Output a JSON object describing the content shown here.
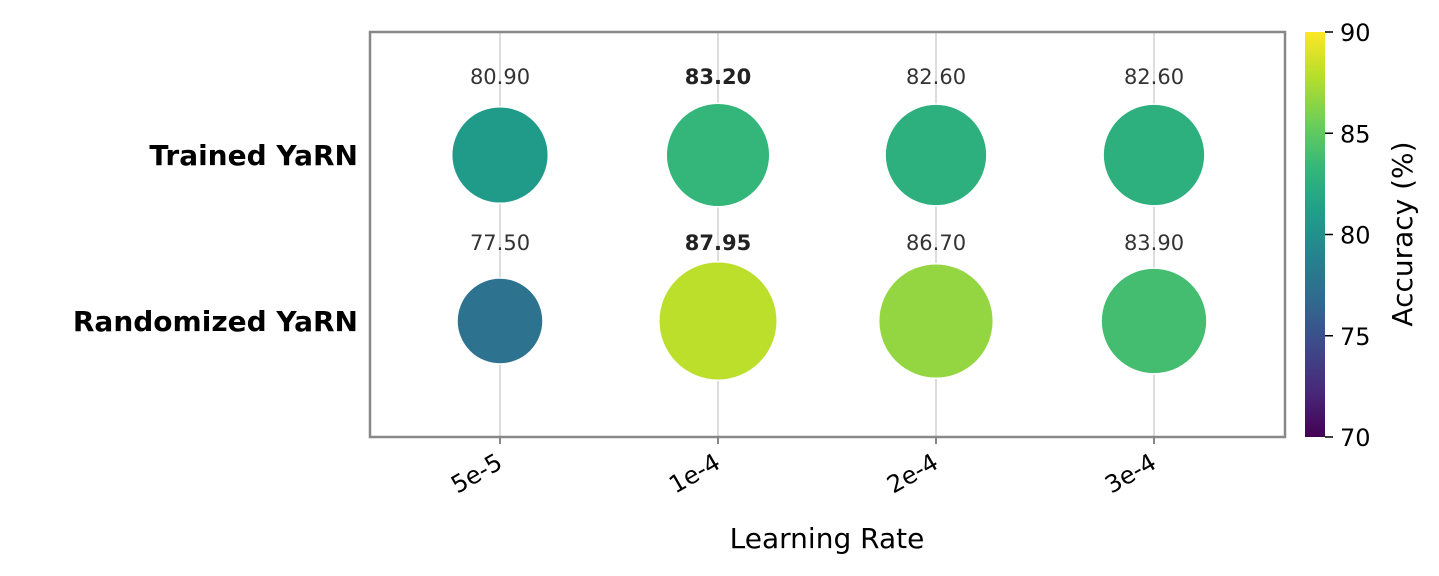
{
  "chart_data": {
    "type": "scatter",
    "x_categories": [
      "5e-5",
      "1e-4",
      "2e-4",
      "3e-4"
    ],
    "y_categories": [
      "Trained YaRN",
      "Randomized YaRN"
    ],
    "series": [
      {
        "name": "Trained YaRN",
        "values": [
          80.9,
          83.2,
          82.6,
          82.6
        ],
        "labels": [
          "80.90",
          "83.20",
          "82.60",
          "82.60"
        ],
        "bold": [
          false,
          true,
          false,
          false
        ]
      },
      {
        "name": "Randomized YaRN",
        "values": [
          77.5,
          87.95,
          86.7,
          83.9
        ],
        "labels": [
          "77.50",
          "87.95",
          "86.70",
          "83.90"
        ],
        "bold": [
          false,
          true,
          false,
          false
        ]
      }
    ],
    "xlabel": "Learning Rate",
    "ylabel": "",
    "colorbar": {
      "label": "Accuracy (%)",
      "range": [
        70,
        90
      ],
      "ticks": [
        70,
        75,
        80,
        85,
        90
      ],
      "colormap": "viridis"
    },
    "grid": "vertical lines",
    "marker_size_encodes": "accuracy"
  },
  "colors": {
    "frame": "#888888",
    "grid": "#dddddd",
    "viridis": [
      "#440154",
      "#482878",
      "#3e4989",
      "#31688e",
      "#26828e",
      "#1f9e89",
      "#35b779",
      "#6ece58",
      "#b5de2b",
      "#fde725"
    ]
  }
}
